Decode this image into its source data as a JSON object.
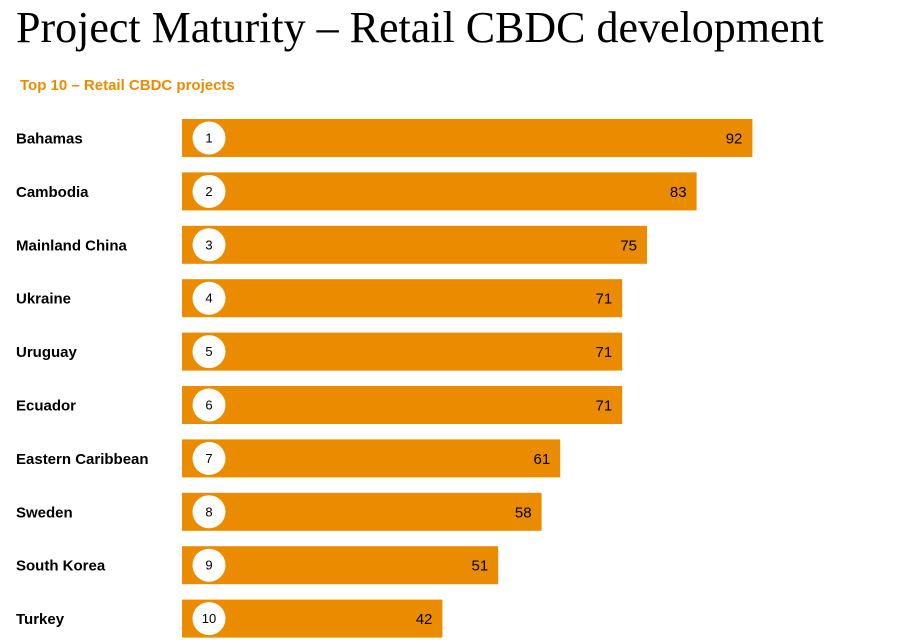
{
  "title": "Project Maturity – Retail CBDC development",
  "colors": {
    "bar": "#EB8C00",
    "subtitle": "#EB8C00",
    "badge_fill": "#FFFFFF",
    "text": "#000000"
  },
  "chart_data": {
    "type": "bar",
    "orientation": "horizontal",
    "title": "Top 10 – Retail CBDC projects",
    "categories": [
      "Bahamas",
      "Cambodia",
      "Mainland China",
      "Ukraine",
      "Uruguay",
      "Ecuador",
      "Eastern Caribbean",
      "Sweden",
      "South Korea",
      "Turkey"
    ],
    "ranks": [
      "1",
      "2",
      "3",
      "4",
      "5",
      "6",
      "7",
      "8",
      "9",
      "10"
    ],
    "values": [
      92,
      83,
      75,
      71,
      71,
      71,
      61,
      58,
      51,
      42
    ],
    "xlim": [
      0,
      100
    ],
    "xlabel": "",
    "ylabel": "",
    "grid": false,
    "legend": "none"
  }
}
